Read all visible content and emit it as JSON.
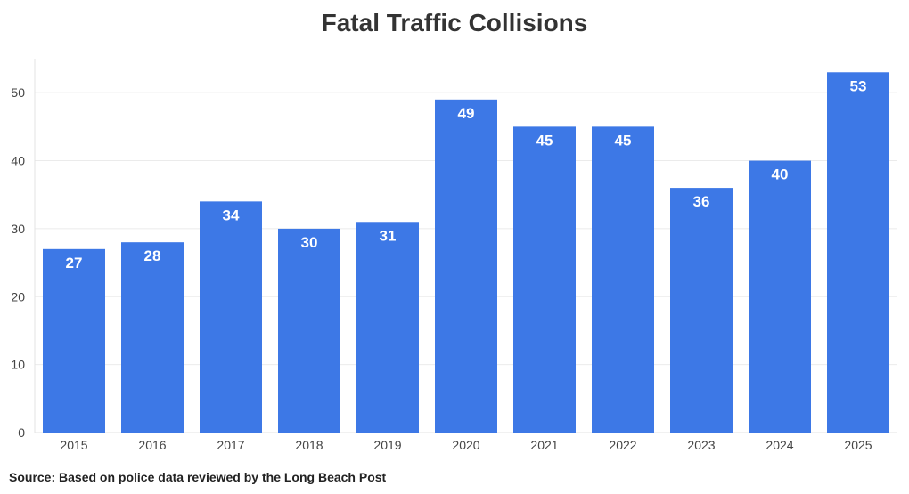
{
  "chart_data": {
    "type": "bar",
    "title": "Fatal Traffic Collisions",
    "source": "Source: Based on police data reviewed by the Long Beach Post",
    "categories": [
      "2015",
      "2016",
      "2017",
      "2018",
      "2019",
      "2020",
      "2021",
      "2022",
      "2023",
      "2024",
      "2025"
    ],
    "values": [
      27,
      28,
      34,
      30,
      31,
      49,
      45,
      45,
      36,
      40,
      53
    ],
    "yticks": [
      0,
      10,
      20,
      30,
      40,
      50
    ],
    "ylim": [
      0,
      55
    ],
    "grid": true,
    "bar_color": "#3d78e6",
    "xlabel": "",
    "ylabel": ""
  }
}
